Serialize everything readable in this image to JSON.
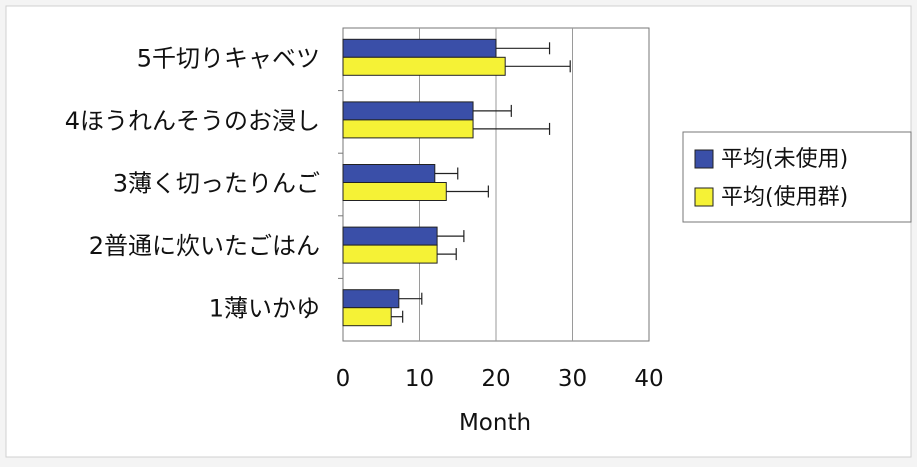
{
  "chart_data": {
    "type": "bar",
    "orientation": "horizontal",
    "title": "",
    "xlabel": "Month",
    "ylabel": "",
    "xlim": [
      0,
      40
    ],
    "xticks": [
      0,
      10,
      20,
      30,
      40
    ],
    "grid": true,
    "legend_position": "right",
    "categories": [
      "5千切りキャベツ",
      "4ほうれんそうのお浸し",
      "3薄く切ったりんご",
      "2普通に炊いたごはん",
      "1薄いかゆ"
    ],
    "series": [
      {
        "name": "平均(未使用)",
        "color": "#3a4fa8",
        "values": [
          20,
          17,
          12,
          12.3,
          7.3
        ],
        "error": [
          7,
          5,
          3,
          3.5,
          3
        ]
      },
      {
        "name": "平均(使用群)",
        "color": "#f5f236",
        "values": [
          21.2,
          17,
          13.5,
          12.3,
          6.3
        ],
        "error": [
          8.5,
          10,
          5.5,
          2.5,
          1.5
        ]
      }
    ]
  }
}
